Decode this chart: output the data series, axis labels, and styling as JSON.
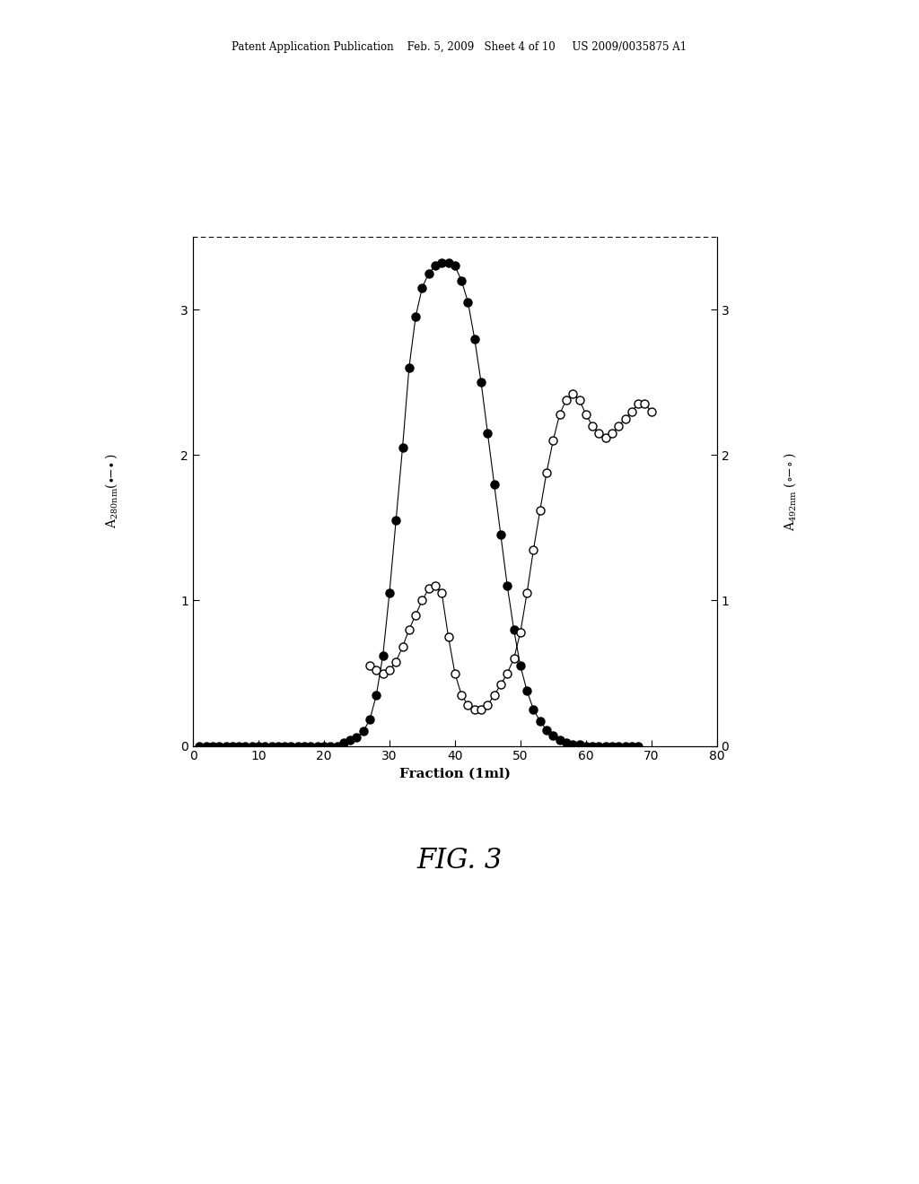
{
  "title_header": "Patent Application Publication    Feb. 5, 2009   Sheet 4 of 10     US 2009/0035875 A1",
  "fig_label": "FIG. 3",
  "xlabel": "Fraction (1ml)",
  "xlim": [
    0,
    80
  ],
  "ylim": [
    0,
    3.5
  ],
  "xticks": [
    0,
    10,
    20,
    30,
    40,
    50,
    60,
    70,
    80
  ],
  "yticks": [
    0,
    1,
    2,
    3
  ],
  "background_color": "#ffffff",
  "filled_x": [
    1,
    2,
    3,
    4,
    5,
    6,
    7,
    8,
    9,
    10,
    11,
    12,
    13,
    14,
    15,
    16,
    17,
    18,
    19,
    20,
    21,
    22,
    23,
    24,
    25,
    26,
    27,
    28,
    29,
    30,
    31,
    32,
    33,
    34,
    35,
    36,
    37,
    38,
    39,
    40,
    41,
    42,
    43,
    44,
    45,
    46,
    47,
    48,
    49,
    50,
    51,
    52,
    53,
    54,
    55,
    56,
    57,
    58,
    59,
    60,
    61,
    62,
    63,
    64,
    65,
    66,
    67,
    68
  ],
  "filled_y": [
    0,
    0,
    0,
    0,
    0,
    0,
    0,
    0,
    0,
    0,
    0,
    0,
    0,
    0,
    0,
    0,
    0,
    0,
    0,
    0,
    0,
    0,
    0.02,
    0.04,
    0.06,
    0.1,
    0.18,
    0.35,
    0.62,
    1.05,
    1.55,
    2.05,
    2.6,
    2.95,
    3.15,
    3.25,
    3.3,
    3.32,
    3.32,
    3.3,
    3.2,
    3.05,
    2.8,
    2.5,
    2.15,
    1.8,
    1.45,
    1.1,
    0.8,
    0.55,
    0.38,
    0.25,
    0.17,
    0.11,
    0.07,
    0.04,
    0.02,
    0.01,
    0.01,
    0.0,
    0.0,
    0.0,
    0.0,
    0.0,
    0.0,
    0.0,
    0.0,
    0.0
  ],
  "open_x": [
    27,
    28,
    29,
    30,
    31,
    32,
    33,
    34,
    35,
    36,
    37,
    38,
    39,
    40,
    41,
    42,
    43,
    44,
    45,
    46,
    47,
    48,
    49,
    50,
    51,
    52,
    53,
    54,
    55,
    56,
    57,
    58,
    59,
    60,
    61,
    62,
    63,
    64,
    65,
    66,
    67,
    68,
    69,
    70
  ],
  "open_y": [
    0.55,
    0.52,
    0.5,
    0.52,
    0.58,
    0.68,
    0.8,
    0.9,
    1.0,
    1.08,
    1.1,
    1.05,
    0.75,
    0.5,
    0.35,
    0.28,
    0.25,
    0.25,
    0.28,
    0.35,
    0.42,
    0.5,
    0.6,
    0.78,
    1.05,
    1.35,
    1.62,
    1.88,
    2.1,
    2.28,
    2.38,
    2.42,
    2.38,
    2.28,
    2.2,
    2.15,
    2.12,
    2.15,
    2.2,
    2.25,
    2.3,
    2.35,
    2.35,
    2.3
  ]
}
